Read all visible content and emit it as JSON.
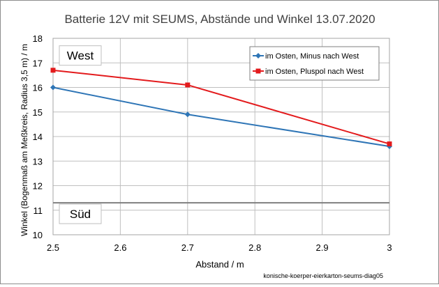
{
  "chart_data": {
    "type": "line",
    "title": "Batterie 12V mit SEUMS, Abstände und Winkel 13.07.2020",
    "xlabel": "Abstand / m",
    "ylabel": "Winkel (Bogenmaß am Meßkreis, Radius 3,5 m) / m",
    "xlim": [
      2.5,
      3.0
    ],
    "ylim": [
      10,
      18
    ],
    "xticks": [
      "2.5",
      "2.6",
      "2.7",
      "2.8",
      "2.9",
      "3"
    ],
    "xtick_values": [
      2.5,
      2.6,
      2.7,
      2.8,
      2.9,
      3.0
    ],
    "yticks": [
      "10",
      "11",
      "12",
      "13",
      "14",
      "15",
      "16",
      "17",
      "18"
    ],
    "ytick_values": [
      10,
      11,
      12,
      13,
      14,
      15,
      16,
      17,
      18
    ],
    "grid": true,
    "legend_position": "top-right",
    "series": [
      {
        "name": "im Osten, Minus nach West",
        "color": "#2e75b6",
        "marker": "diamond",
        "x": [
          2.5,
          2.7,
          3.0
        ],
        "y": [
          16.0,
          14.9,
          13.6
        ]
      },
      {
        "name": "im Osten, Pluspol nach West",
        "color": "#e31a1c",
        "marker": "square",
        "x": [
          2.5,
          2.7,
          3.0
        ],
        "y": [
          16.7,
          16.1,
          13.7
        ]
      }
    ],
    "reference_line": {
      "y": 11.3,
      "color": "#7f7f7f"
    },
    "annotations": [
      {
        "text": "West",
        "y": 17.3
      },
      {
        "text": "Süd",
        "y": 10.85
      }
    ],
    "footnote": "konische-koerper-eierkarton-seums-diag05"
  }
}
